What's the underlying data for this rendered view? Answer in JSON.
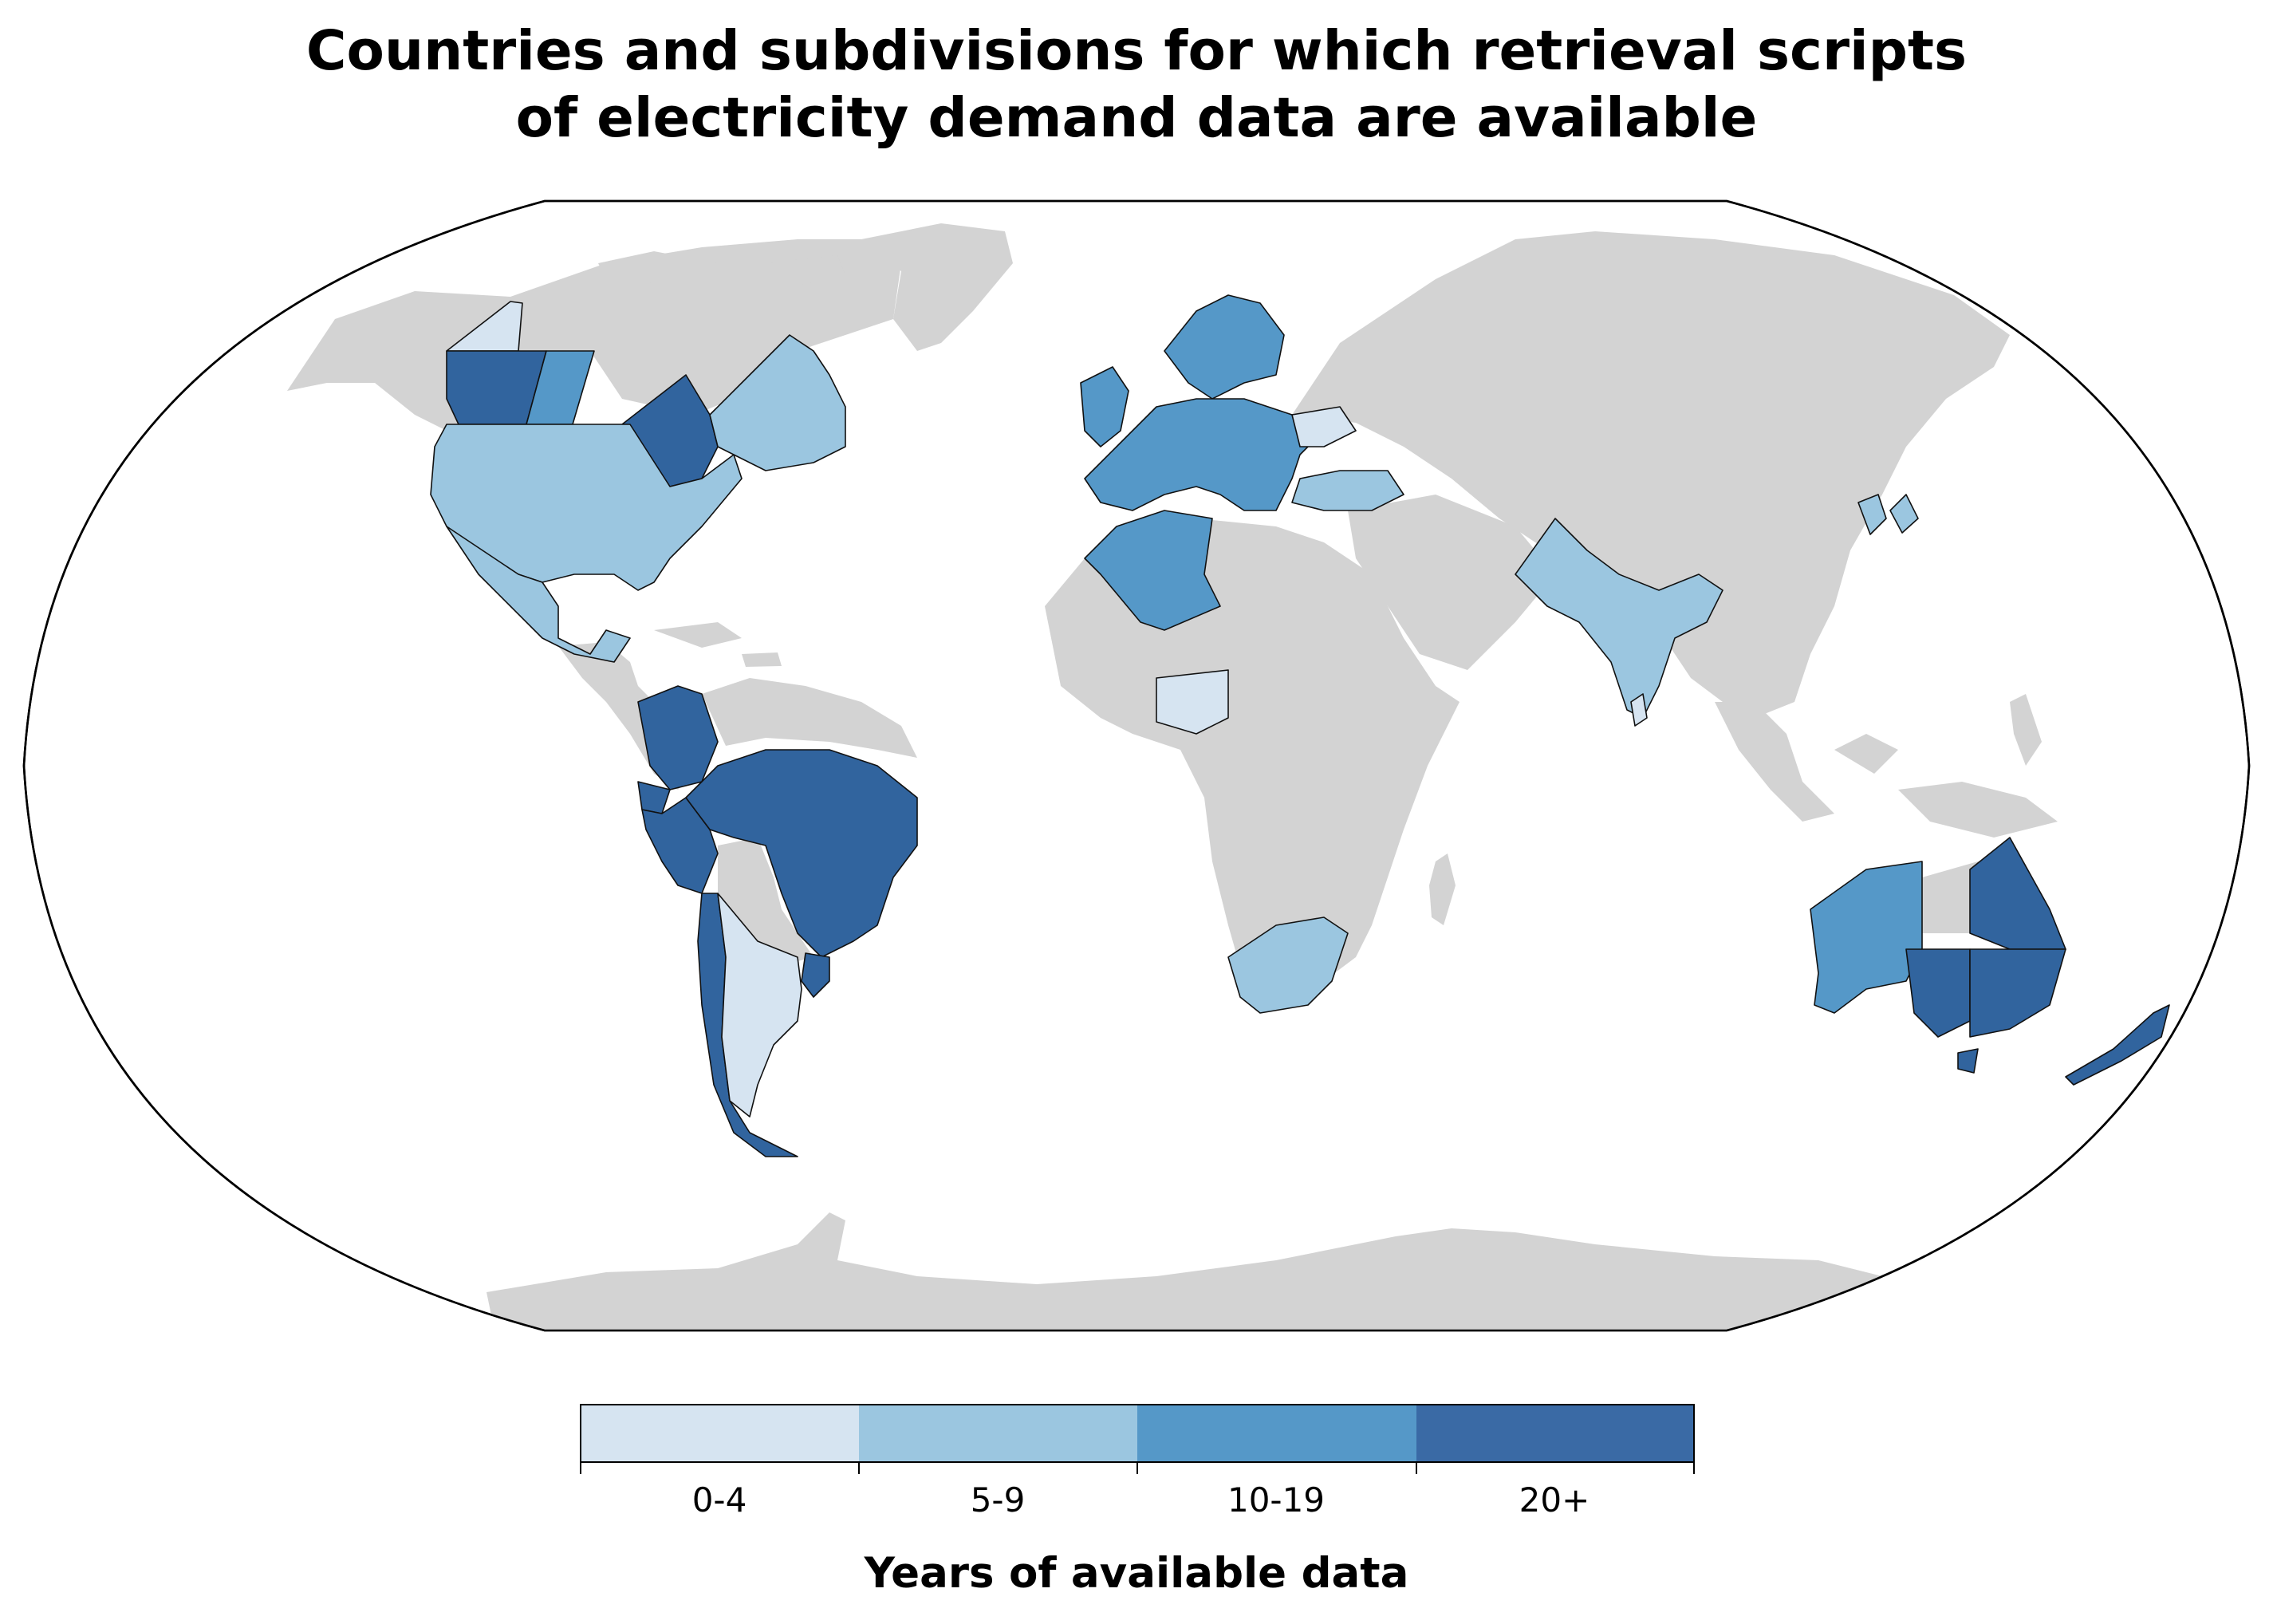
{
  "title": {
    "line1": "Countries and subdivisions for which retrieval scripts",
    "line2": "of electricity demand data are available"
  },
  "colors": {
    "land_no_data": "#d3d3d3",
    "bin_0_4": "#d6e4f1",
    "bin_5_9": "#9bc6e0",
    "bin_10_19": "#5598c8",
    "bin_20_plus": "#31649e"
  },
  "legend": {
    "label": "Years of available data",
    "bins": [
      {
        "label": "0-4",
        "color": "#d6e4f1"
      },
      {
        "label": "5-9",
        "color": "#9bc6e0"
      },
      {
        "label": "10-19",
        "color": "#5598c8"
      },
      {
        "label": "20+",
        "color": "#31649e"
      }
    ]
  },
  "map_data": {
    "projection": "robinson",
    "regions": [
      {
        "region": "United States",
        "bin": "5-9"
      },
      {
        "region": "Mexico",
        "bin": "5-9"
      },
      {
        "region": "Quebec",
        "bin": "5-9"
      },
      {
        "region": "Maritime provinces",
        "bin": "5-9"
      },
      {
        "region": "Yukon",
        "bin": "0-4"
      },
      {
        "region": "British Columbia",
        "bin": "20+"
      },
      {
        "region": "Alberta",
        "bin": "10-19"
      },
      {
        "region": "Ontario",
        "bin": "20+"
      },
      {
        "region": "Colombia",
        "bin": "20+"
      },
      {
        "region": "Ecuador",
        "bin": "20+"
      },
      {
        "region": "Peru",
        "bin": "20+"
      },
      {
        "region": "Brazil",
        "bin": "20+"
      },
      {
        "region": "Uruguay",
        "bin": "20+"
      },
      {
        "region": "Chile",
        "bin": "20+"
      },
      {
        "region": "Argentina",
        "bin": "0-4"
      },
      {
        "region": "Europe",
        "bin": "10-19"
      },
      {
        "region": "Romania",
        "bin": "0-4"
      },
      {
        "region": "Turkey",
        "bin": "5-9"
      },
      {
        "region": "Algeria",
        "bin": "10-19"
      },
      {
        "region": "Nigeria",
        "bin": "0-4"
      },
      {
        "region": "South Africa",
        "bin": "5-9"
      },
      {
        "region": "India",
        "bin": "5-9"
      },
      {
        "region": "Nepal",
        "bin": "5-9"
      },
      {
        "region": "Sri Lanka",
        "bin": "0-4"
      },
      {
        "region": "South Korea",
        "bin": "5-9"
      },
      {
        "region": "Japan",
        "bin": "5-9"
      },
      {
        "region": "Western Australia",
        "bin": "10-19"
      },
      {
        "region": "Queensland",
        "bin": "20+"
      },
      {
        "region": "South Australia",
        "bin": "20+"
      },
      {
        "region": "New South Wales",
        "bin": "20+"
      },
      {
        "region": "Victoria",
        "bin": "20+"
      },
      {
        "region": "Tasmania",
        "bin": "20+"
      },
      {
        "region": "New Zealand",
        "bin": "20+"
      }
    ]
  }
}
